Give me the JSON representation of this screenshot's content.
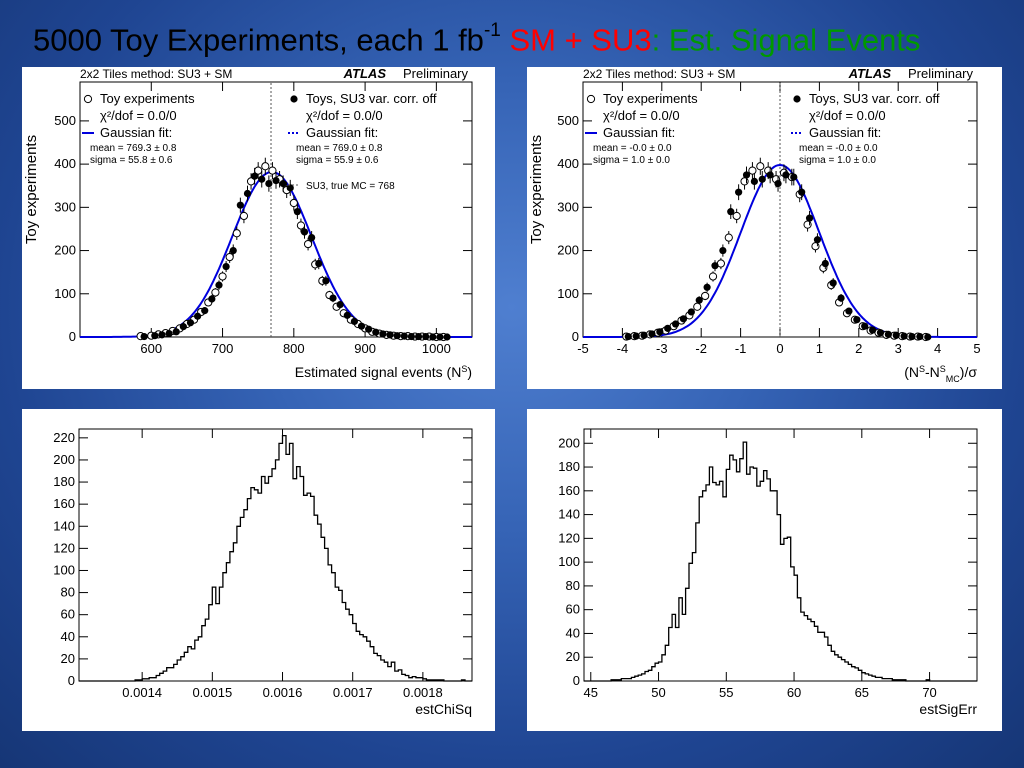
{
  "slide": {
    "title_main": "5000 Toy Experiments, each 1 fb",
    "title_sup": "-1",
    "title_sm": "SM + SU3",
    "title_colon": ":",
    "title_est": " Est. Signal Events",
    "colors": {
      "title_text": "#000000",
      "sm_su3": "#ff0000",
      "est": "#009900",
      "fit": "#0000dd",
      "background": "#2d5aa8"
    }
  },
  "chart_data": [
    {
      "id": "tl",
      "type": "scatter",
      "header_left": "2x2 Tiles method: SU3 + SM",
      "atlas": "ATLAS",
      "preliminary": "Preliminary",
      "xlabel": "Estimated signal events (N",
      "xlabel_sup": "S",
      "xlabel_end": ")",
      "ylabel": "Toy experiments",
      "xlim": [
        500,
        1050
      ],
      "ylim": [
        0,
        590
      ],
      "xticks": [
        600,
        700,
        800,
        900,
        1000
      ],
      "yticks": [
        0,
        100,
        200,
        300,
        400,
        500
      ],
      "ref_line": 768,
      "gauss": {
        "mean": 769.2,
        "sigma": 55.8,
        "amp": 382,
        "color": "#0000dd"
      },
      "legend_left": [
        "Toy experiments",
        "χ²/dof = 0.0/0",
        "Gaussian fit:",
        "mean  = 769.3 ± 0.8",
        "sigma = 55.8 ± 0.6"
      ],
      "legend_right": [
        "Toys, SU3 var. corr. off",
        "χ²/dof = 0.0/0",
        "Gaussian fit:",
        "mean  = 769.0 ± 0.8",
        "sigma = 55.9 ± 0.6",
        "SU3, true MC = 768"
      ],
      "series": [
        {
          "name": "Toy experiments",
          "marker": "open",
          "x": [
            585,
            600,
            610,
            620,
            630,
            640,
            650,
            660,
            670,
            680,
            690,
            700,
            710,
            720,
            730,
            740,
            750,
            760,
            770,
            780,
            790,
            800,
            810,
            820,
            830,
            840,
            850,
            860,
            870,
            880,
            890,
            900,
            910,
            920,
            930,
            940,
            950,
            960,
            970,
            980,
            990,
            1000,
            1010
          ],
          "y": [
            2,
            3,
            6,
            9,
            14,
            20,
            30,
            40,
            58,
            80,
            103,
            140,
            185,
            240,
            280,
            360,
            385,
            395,
            385,
            365,
            340,
            310,
            258,
            215,
            168,
            130,
            97,
            70,
            55,
            40,
            30,
            20,
            12,
            8,
            5,
            3,
            2,
            2,
            1,
            1,
            1,
            0,
            0
          ]
        },
        {
          "name": "Toys, SU3 var. corr. off",
          "marker": "filled",
          "x": [
            590,
            605,
            615,
            625,
            635,
            645,
            655,
            665,
            675,
            685,
            695,
            705,
            715,
            725,
            735,
            745,
            755,
            765,
            775,
            785,
            795,
            805,
            815,
            825,
            835,
            845,
            855,
            865,
            875,
            885,
            895,
            905,
            915,
            925,
            935,
            945,
            955,
            965,
            975,
            985,
            995,
            1005,
            1015
          ],
          "y": [
            1,
            3,
            5,
            8,
            12,
            24,
            33,
            48,
            61,
            88,
            120,
            163,
            200,
            305,
            332,
            372,
            365,
            355,
            362,
            355,
            345,
            290,
            243,
            230,
            170,
            130,
            90,
            75,
            50,
            36,
            25,
            18,
            11,
            7,
            5,
            3,
            2,
            1,
            1,
            1,
            0,
            0,
            0
          ]
        }
      ]
    },
    {
      "id": "tr",
      "type": "scatter",
      "header_left": "2x2 Tiles method: SU3 + SM",
      "atlas": "ATLAS",
      "preliminary": "Preliminary",
      "xlabel": "(N",
      "xlabel_sup": "S",
      "xlabel_mid": "-N",
      "xlabel_sup2": "S",
      "xlabel_sub2": "MC",
      "xlabel_end": ")/σ",
      "ylabel": "Toy experiments",
      "xlim": [
        -5,
        5
      ],
      "ylim": [
        0,
        590
      ],
      "xticks": [
        -5,
        -4,
        -3,
        -2,
        -1,
        0,
        1,
        2,
        3,
        4,
        5
      ],
      "yticks": [
        0,
        100,
        200,
        300,
        400,
        500
      ],
      "ref_line": 0,
      "gauss": {
        "mean": 0.0,
        "sigma": 1.0,
        "amp": 398,
        "color": "#0000dd"
      },
      "legend_left": [
        "Toy experiments",
        "χ²/dof = 0.0/0",
        "Gaussian fit:",
        "mean  = -0.0 ± 0.0",
        "sigma = 1.0 ± 0.0"
      ],
      "legend_right": [
        "Toys, SU3 var. corr. off",
        "χ²/dof = 0.0/0",
        "Gaussian fit:",
        "mean  = -0.0 ± 0.0",
        "sigma = 1.0 ± 0.0"
      ],
      "series": [
        {
          "name": "Toy experiments",
          "marker": "open",
          "x": [
            -3.9,
            -3.7,
            -3.5,
            -3.3,
            -3.1,
            -2.9,
            -2.7,
            -2.5,
            -2.3,
            -2.1,
            -1.9,
            -1.7,
            -1.5,
            -1.3,
            -1.1,
            -0.9,
            -0.7,
            -0.5,
            -0.3,
            -0.1,
            0.1,
            0.3,
            0.5,
            0.7,
            0.9,
            1.1,
            1.3,
            1.5,
            1.7,
            1.9,
            2.1,
            2.3,
            2.5,
            2.7,
            2.9,
            3.1,
            3.3,
            3.5,
            3.7
          ],
          "y": [
            1,
            2,
            3,
            6,
            10,
            15,
            25,
            38,
            50,
            70,
            95,
            140,
            170,
            230,
            280,
            360,
            385,
            395,
            385,
            365,
            380,
            370,
            330,
            260,
            210,
            160,
            120,
            80,
            55,
            40,
            25,
            15,
            10,
            5,
            3,
            2,
            1,
            1,
            0
          ]
        },
        {
          "name": "Toys, SU3 var. corr. off",
          "marker": "filled",
          "x": [
            -3.85,
            -3.65,
            -3.45,
            -3.25,
            -3.05,
            -2.85,
            -2.65,
            -2.45,
            -2.25,
            -2.05,
            -1.85,
            -1.65,
            -1.45,
            -1.25,
            -1.05,
            -0.85,
            -0.65,
            -0.45,
            -0.25,
            -0.05,
            0.15,
            0.35,
            0.55,
            0.75,
            0.95,
            1.15,
            1.35,
            1.55,
            1.75,
            1.95,
            2.15,
            2.35,
            2.55,
            2.75,
            2.95,
            3.15,
            3.35,
            3.55,
            3.75
          ],
          "y": [
            1,
            2,
            4,
            7,
            12,
            20,
            30,
            42,
            58,
            85,
            115,
            165,
            200,
            290,
            335,
            375,
            360,
            365,
            375,
            355,
            375,
            370,
            335,
            275,
            225,
            170,
            125,
            90,
            60,
            40,
            25,
            16,
            10,
            6,
            4,
            2,
            1,
            1,
            0
          ]
        }
      ]
    },
    {
      "id": "bl",
      "type": "histogram",
      "xlabel": "estChiSq",
      "xlim": [
        0.00131,
        0.00187
      ],
      "ylim": [
        0,
        228
      ],
      "xticks": [
        0.0014,
        0.0015,
        0.0016,
        0.0017,
        0.0018
      ],
      "yticks": [
        0,
        20,
        40,
        60,
        80,
        100,
        120,
        140,
        160,
        180,
        200,
        220
      ],
      "bin_start": 0.00131,
      "bin_width": 5e-06,
      "values": [
        0,
        0,
        0,
        0,
        0,
        0,
        0,
        0,
        0,
        0,
        0,
        0,
        0,
        0,
        0,
        0,
        1,
        1,
        2,
        2,
        3,
        3,
        5,
        7,
        9,
        12,
        12,
        15,
        19,
        22,
        26,
        31,
        29,
        37,
        40,
        50,
        56,
        69,
        85,
        70,
        85,
        98,
        107,
        117,
        125,
        140,
        148,
        155,
        165,
        175,
        173,
        170,
        185,
        179,
        185,
        192,
        200,
        215,
        222,
        205,
        215,
        183,
        194,
        185,
        168,
        170,
        167,
        150,
        142,
        130,
        120,
        105,
        98,
        85,
        82,
        71,
        65,
        60,
        52,
        45,
        42,
        40,
        36,
        31,
        25,
        23,
        19,
        17,
        13,
        17,
        9,
        10,
        6,
        5,
        3,
        4,
        3,
        3,
        2,
        1,
        1,
        1,
        1,
        1,
        0,
        0,
        0,
        0,
        0,
        1,
        0,
        0
      ]
    },
    {
      "id": "br",
      "type": "histogram",
      "xlabel": "estSigErr",
      "xlim": [
        44.5,
        73.5
      ],
      "ylim": [
        0,
        212
      ],
      "xticks": [
        45,
        50,
        55,
        60,
        65,
        70
      ],
      "yticks": [
        0,
        20,
        40,
        60,
        80,
        100,
        120,
        140,
        160,
        180,
        200
      ],
      "bin_start": 44.5,
      "bin_width": 0.25,
      "values": [
        0,
        0,
        0,
        0,
        0,
        0,
        0,
        0,
        1,
        1,
        1,
        2,
        2,
        2,
        3,
        4,
        5,
        6,
        8,
        9,
        12,
        15,
        16,
        22,
        30,
        45,
        56,
        45,
        70,
        56,
        78,
        99,
        108,
        133,
        155,
        160,
        165,
        180,
        167,
        165,
        168,
        155,
        178,
        190,
        186,
        176,
        187,
        201,
        174,
        180,
        179,
        164,
        168,
        177,
        170,
        160,
        160,
        140,
        115,
        120,
        121,
        96,
        89,
        70,
        58,
        55,
        52,
        50,
        46,
        41,
        41,
        37,
        30,
        25,
        22,
        20,
        18,
        16,
        14,
        12,
        11,
        9,
        7,
        6,
        5,
        4,
        3,
        3,
        2,
        2,
        2,
        1,
        1,
        1,
        1,
        0,
        0,
        0,
        0,
        0,
        0,
        1,
        0,
        0,
        0,
        0,
        0,
        0,
        0,
        0,
        0,
        0,
        0,
        0,
        0,
        0
      ]
    }
  ]
}
